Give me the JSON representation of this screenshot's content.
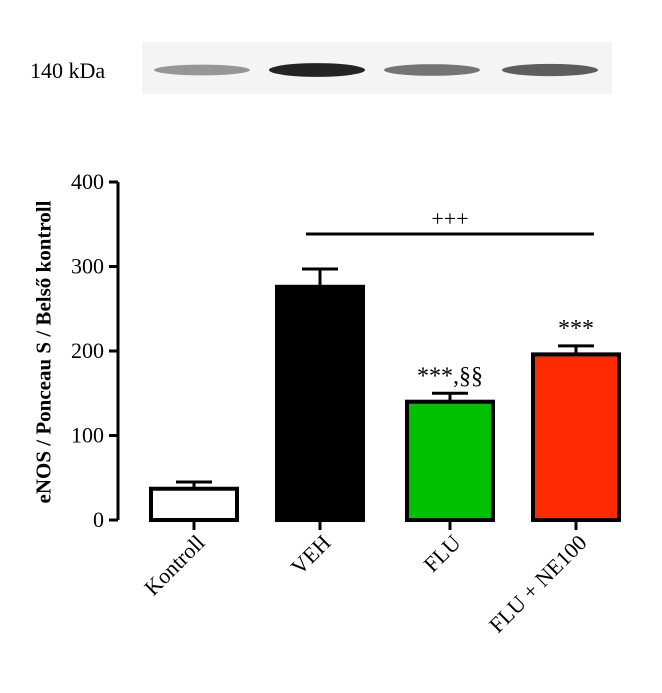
{
  "blot": {
    "label": "140 kDa",
    "band_intensity": [
      0.45,
      0.95,
      0.6,
      0.7
    ]
  },
  "chart_data": {
    "type": "bar",
    "title": "",
    "xlabel": "",
    "ylabel": "eNOS / Ponceau S / Belső kontroll",
    "ylim": [
      0,
      400
    ],
    "yticks": [
      0,
      100,
      200,
      300,
      400
    ],
    "categories": [
      "Kontroll",
      "VEH",
      "FLU",
      "FLU + NE100"
    ],
    "values": [
      37,
      276,
      140,
      196
    ],
    "errors": [
      8,
      21,
      10,
      10
    ],
    "colors": [
      "#ffffff",
      "#000000",
      "#00c000",
      "#ff2a00"
    ],
    "annotations": [
      "",
      "",
      "***,§§",
      "***"
    ],
    "comparison": {
      "label": "+++",
      "from": 1,
      "to": 3
    },
    "grid": false,
    "legend": "none"
  }
}
